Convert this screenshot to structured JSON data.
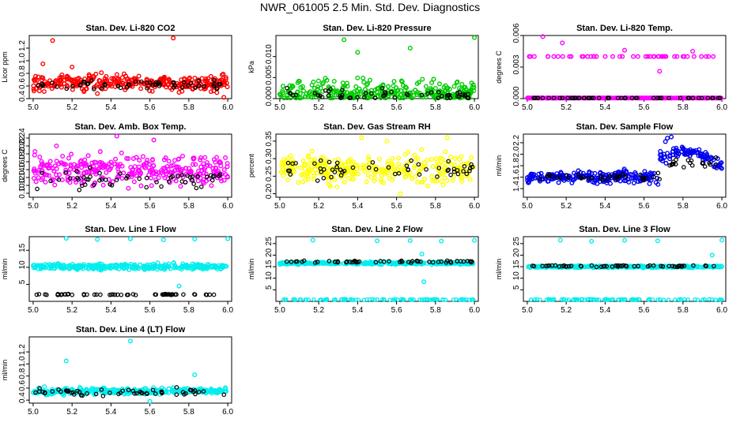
{
  "page_title": "NWR_061005  2.5 Min. Std. Dev. Diagnostics",
  "colors": {
    "red": "#ff0000",
    "green": "#00cc00",
    "magenta": "#ff00ff",
    "yellow": "#ffff00",
    "blue": "#0000ee",
    "cyan": "#00eeee",
    "black": "#000000"
  },
  "chart_data": [
    {
      "id": "p1",
      "type": "scatter",
      "title": "Stan. Dev. Li-820 CO2",
      "ylabel": "Licor ppm",
      "xlim": [
        4.98,
        6.02
      ],
      "ylim": [
        0.4,
        1.4
      ],
      "xticks": [
        "5.0",
        "5.2",
        "5.4",
        "5.6",
        "5.8",
        "6.0"
      ],
      "yticks": [
        "0.4",
        "0.6",
        "0.8",
        "1.0",
        "1.2"
      ],
      "color": "red",
      "series": {
        "main": {
          "base": 0.65,
          "spread": 0.12
        },
        "black": {
          "base": 0.62,
          "spread": 0.08
        },
        "outliers": [
          [
            5.1,
            1.32
          ],
          [
            5.72,
            1.36
          ],
          [
            5.05,
            0.95
          ],
          [
            5.2,
            0.9
          ],
          [
            5.33,
            0.48
          ],
          [
            5.98,
            0.42
          ]
        ]
      }
    },
    {
      "id": "p2",
      "type": "scatter",
      "title": "Stan. Dev. Li-820 Pressure",
      "ylabel": "kPa",
      "xlim": [
        4.98,
        6.02
      ],
      "ylim": [
        0.0,
        0.015
      ],
      "xticks": [
        "5.0",
        "5.2",
        "5.4",
        "5.6",
        "5.8",
        "6.0"
      ],
      "yticks": [
        "0.000",
        "0.005",
        "0.010"
      ],
      "color": "green",
      "series": {
        "main": {
          "base": 0.003,
          "spread": 0.003
        },
        "black": {
          "base": 0.002,
          "spread": 0.002
        },
        "outliers": [
          [
            5.33,
            0.014
          ],
          [
            5.4,
            0.011
          ],
          [
            5.67,
            0.012
          ],
          [
            6.0,
            0.0145
          ]
        ]
      }
    },
    {
      "id": "p3",
      "type": "scatter",
      "title": "Stan. Dev. Li-820 Temp.",
      "ylabel": "degrees C",
      "xlim": [
        4.98,
        6.02
      ],
      "ylim": [
        0.0,
        0.006
      ],
      "xticks": [
        "5.0",
        "5.2",
        "5.4",
        "5.6",
        "5.8",
        "6.0"
      ],
      "yticks": [
        "0.000",
        "0.003",
        "0.006"
      ],
      "color": "magenta",
      "series": {
        "main": {
          "base": 0.0,
          "spread": 0.0
        },
        "black": {
          "base": 0.0,
          "spread": 0.0
        },
        "upper_level": 0.004,
        "outliers": [
          [
            5.08,
            0.0059
          ],
          [
            5.18,
            0.0053
          ],
          [
            5.5,
            0.0046
          ],
          [
            5.68,
            0.0026
          ],
          [
            5.85,
            0.0045
          ]
        ]
      }
    },
    {
      "id": "p4",
      "type": "scatter",
      "title": "Stan. Dev. Amb. Box Temp.",
      "ylabel": "degrees C",
      "xlim": [
        4.98,
        6.02
      ],
      "ylim": [
        0.09,
        0.25
      ],
      "xticks": [
        "5.0",
        "5.2",
        "5.4",
        "5.6",
        "5.8",
        "6.0"
      ],
      "yticks": [
        "0.10",
        "0.12",
        "0.14",
        "0.16",
        "0.18",
        "0.20",
        "0.22",
        "0.24"
      ],
      "color": "magenta",
      "series": {
        "main": {
          "base": 0.16,
          "spread": 0.04
        },
        "black": {
          "base": 0.135,
          "spread": 0.02
        },
        "outliers": [
          [
            5.43,
            0.245
          ],
          [
            5.62,
            0.235
          ],
          [
            5.12,
            0.22
          ]
        ]
      }
    },
    {
      "id": "p5",
      "type": "scatter",
      "title": "Stan. Dev. Gas Stream RH",
      "ylabel": "percent",
      "xlim": [
        4.98,
        6.02
      ],
      "ylim": [
        0.19,
        0.37
      ],
      "xticks": [
        "5.0",
        "5.2",
        "5.4",
        "5.6",
        "5.8",
        "6.0"
      ],
      "yticks": [
        "0.20",
        "0.25",
        "0.30",
        "0.35"
      ],
      "color": "yellow",
      "series": {
        "main": {
          "base": 0.27,
          "spread": 0.04
        },
        "black": {
          "base": 0.27,
          "spread": 0.025
        },
        "outliers": [
          [
            5.42,
            0.36
          ],
          [
            5.55,
            0.35
          ],
          [
            5.86,
            0.36
          ],
          [
            5.62,
            0.2
          ]
        ]
      }
    },
    {
      "id": "p6",
      "type": "scatter",
      "title": "Stan. Dev. Sample Flow",
      "ylabel": "ml/min",
      "xlim": [
        4.98,
        6.02
      ],
      "ylim": [
        1.25,
        2.35
      ],
      "xticks": [
        "5.0",
        "5.2",
        "5.4",
        "5.6",
        "5.8",
        "6.0"
      ],
      "yticks": [
        "1.4",
        "1.6",
        "1.8",
        "2.0",
        "2.2"
      ],
      "color": "blue",
      "series": {
        "main": {
          "base": 1.6,
          "spread": 0.1
        },
        "black": {
          "base": 1.6,
          "spread": 0.07
        },
        "outliers": [
          [
            5.72,
            2.28
          ],
          [
            5.74,
            2.3
          ],
          [
            5.71,
            2.22
          ]
        ]
      }
    },
    {
      "id": "p7",
      "type": "scatter",
      "title": "Stan. Dev. Line 1 Flow",
      "ylabel": "ml/min",
      "xlim": [
        4.98,
        6.02
      ],
      "ylim": [
        0,
        19
      ],
      "xticks": [
        "5.0",
        "5.2",
        "5.4",
        "5.6",
        "5.8",
        "6.0"
      ],
      "yticks": [
        "5",
        "10",
        "15"
      ],
      "color": "cyan",
      "series": {
        "main": {
          "base": 10.2,
          "spread": 0.8
        },
        "black": {
          "base": 2.0,
          "spread": 0.15
        },
        "outliers": [
          [
            5.17,
            18.5
          ],
          [
            5.33,
            18.2
          ],
          [
            5.5,
            18.4
          ],
          [
            5.67,
            18.1
          ],
          [
            5.83,
            18.3
          ],
          [
            6.0,
            18.4
          ],
          [
            5.75,
            4.5
          ]
        ]
      }
    },
    {
      "id": "p8",
      "type": "scatter",
      "title": "Stan. Dev. Line 2 Flow",
      "ylabel": "ml/min",
      "xlim": [
        4.98,
        6.02
      ],
      "ylim": [
        0,
        28
      ],
      "xticks": [
        "5.0",
        "5.2",
        "5.4",
        "5.6",
        "5.8",
        "6.0"
      ],
      "yticks": [
        "5",
        "10",
        "15",
        "20",
        "25"
      ],
      "color": "cyan",
      "series": {
        "main": {
          "base": 16.5,
          "spread": 0.5
        },
        "black": {
          "base": 17.2,
          "spread": 0.4
        },
        "baseline": 0.8,
        "outliers": [
          [
            5.17,
            26.5
          ],
          [
            5.5,
            26.2
          ],
          [
            5.67,
            26.3
          ],
          [
            5.83,
            26.1
          ],
          [
            6.0,
            26.4
          ],
          [
            5.73,
            20.5
          ],
          [
            5.74,
            8.5
          ]
        ]
      }
    },
    {
      "id": "p9",
      "type": "scatter",
      "title": "Stan. Dev. Line 3 Flow",
      "ylabel": "ml/min",
      "xlim": [
        4.98,
        6.02
      ],
      "ylim": [
        0,
        28
      ],
      "xticks": [
        "5.0",
        "5.2",
        "5.4",
        "5.6",
        "5.8",
        "6.0"
      ],
      "yticks": [
        "5",
        "10",
        "15",
        "20",
        "25"
      ],
      "color": "cyan",
      "series": {
        "main": {
          "base": 15.0,
          "spread": 0.4
        },
        "black": {
          "base": 15.3,
          "spread": 0.4
        },
        "baseline": 0.8,
        "outliers": [
          [
            5.17,
            26.5
          ],
          [
            5.33,
            26.0
          ],
          [
            5.5,
            26.4
          ],
          [
            5.67,
            26.2
          ],
          [
            6.0,
            26.5
          ],
          [
            5.95,
            20.0
          ]
        ]
      }
    },
    {
      "id": "p10",
      "type": "scatter",
      "title": "Stan. Dev. Line 4 (LT) Flow",
      "ylabel": "ml/min",
      "xlim": [
        4.98,
        6.02
      ],
      "ylim": [
        0.35,
        1.45
      ],
      "xticks": [
        "5.0",
        "5.2",
        "5.4",
        "5.6",
        "5.8",
        "6.0"
      ],
      "yticks": [
        "0.4",
        "0.6",
        "0.8",
        "1.0",
        "1.2"
      ],
      "color": "cyan",
      "series": {
        "main": {
          "base": 0.55,
          "spread": 0.05
        },
        "black": {
          "base": 0.52,
          "spread": 0.06
        },
        "outliers": [
          [
            5.5,
            1.38
          ],
          [
            5.17,
            1.05
          ],
          [
            5.83,
            0.82
          ],
          [
            5.6,
            0.38
          ]
        ]
      }
    }
  ]
}
